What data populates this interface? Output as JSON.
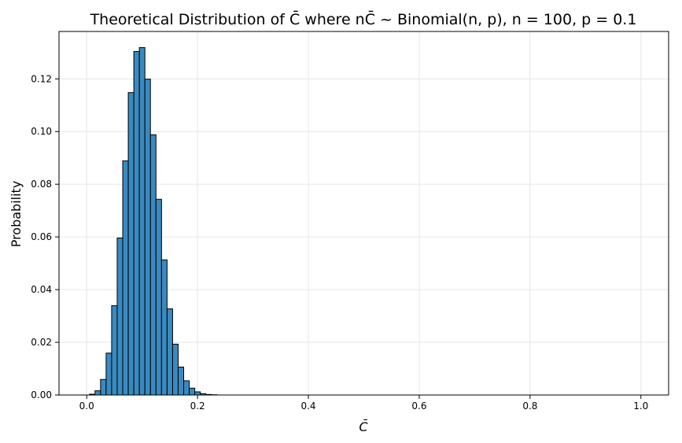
{
  "chart_data": {
    "type": "bar",
    "title": "Theoretical Distribution of C̄ where nC̄ ~ Binomial(n, p), n = 100, p = 0.1",
    "xlabel": "C̄",
    "ylabel": "Probability",
    "xlim": [
      -0.05,
      1.05
    ],
    "ylim": [
      0,
      0.138
    ],
    "grid": true,
    "bar_width": 0.01,
    "x": [
      0.0,
      0.01,
      0.02,
      0.03,
      0.04,
      0.05,
      0.06,
      0.07,
      0.08,
      0.09,
      0.1,
      0.11,
      0.12,
      0.13,
      0.14,
      0.15,
      0.16,
      0.17,
      0.18,
      0.19,
      0.2,
      0.21,
      0.22,
      0.23,
      0.24,
      0.25
    ],
    "values": [
      0.0,
      0.0003,
      0.0016,
      0.0059,
      0.0159,
      0.0339,
      0.0596,
      0.0889,
      0.1148,
      0.1304,
      0.1319,
      0.1199,
      0.0988,
      0.0743,
      0.0513,
      0.0327,
      0.0193,
      0.0106,
      0.0054,
      0.0026,
      0.0012,
      0.0005,
      0.0002,
      0.0001,
      0.0,
      0.0
    ],
    "x_ticks": [
      0.0,
      0.2,
      0.4,
      0.6,
      0.8,
      1.0
    ],
    "x_tick_labels": [
      "0.0",
      "0.2",
      "0.4",
      "0.6",
      "0.8",
      "1.0"
    ],
    "y_ticks": [
      0.0,
      0.02,
      0.04,
      0.06,
      0.08,
      0.1,
      0.12
    ],
    "y_tick_labels": [
      "0.00",
      "0.02",
      "0.04",
      "0.06",
      "0.08",
      "0.10",
      "0.12"
    ],
    "colors": {
      "bar_fill": "#3a8ac0",
      "bar_edge": "#000000",
      "grid": "#e6e6e6",
      "axis": "#000000"
    }
  }
}
